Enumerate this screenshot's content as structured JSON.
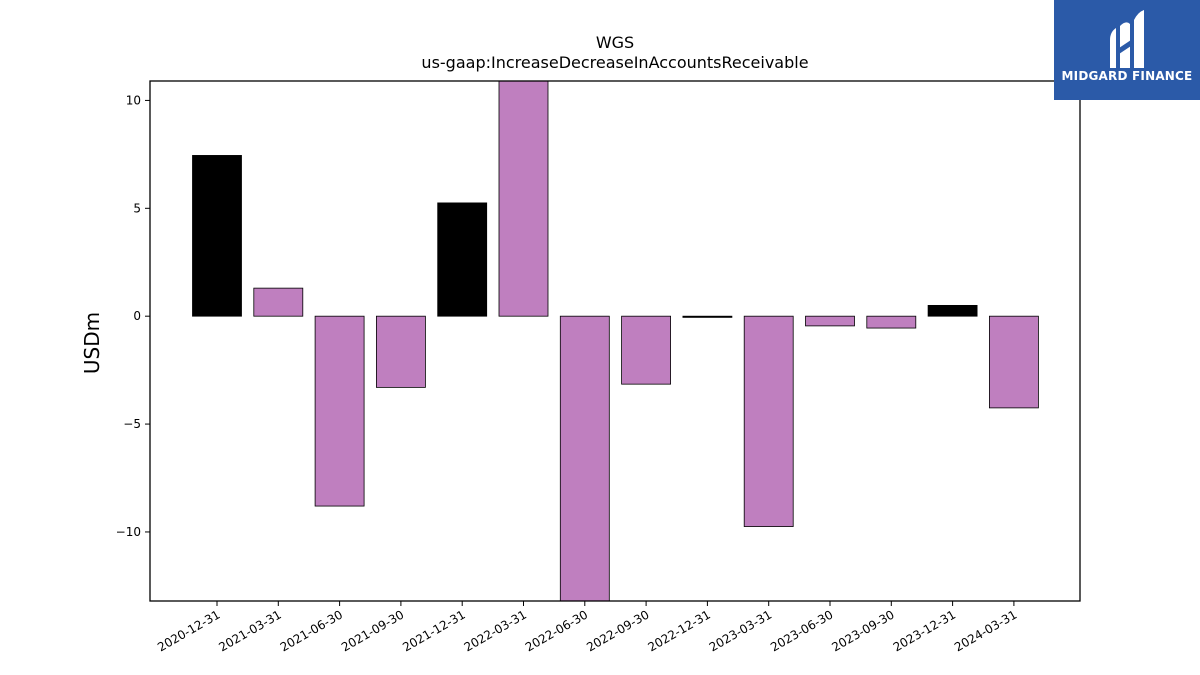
{
  "chart_data": {
    "type": "bar",
    "title": "WGS",
    "subtitle": "us-gaap:IncreaseDecreaseInAccountsReceivable",
    "ylabel": "USDm",
    "xlabel": "",
    "ylim": [
      -13.2,
      10.9
    ],
    "yticks": [
      10,
      5,
      0,
      -5,
      -10
    ],
    "ytick_labels": [
      "10",
      "5",
      "0",
      "−5",
      "−10"
    ],
    "categories": [
      "2020-12-31",
      "2021-03-31",
      "2021-06-30",
      "2021-09-30",
      "2021-12-31",
      "2022-03-31",
      "2022-06-30",
      "2022-09-30",
      "2022-12-31",
      "2023-03-31",
      "2023-06-30",
      "2023-09-30",
      "2023-12-31",
      "2024-03-31"
    ],
    "values": [
      7.45,
      1.3,
      -8.8,
      -3.3,
      5.25,
      10.9,
      -13.2,
      -3.15,
      -0.05,
      -9.75,
      -0.45,
      -0.55,
      0.5,
      -4.25
    ],
    "colors": [
      "#000000",
      "#bf7fbf",
      "#bf7fbf",
      "#bf7fbf",
      "#000000",
      "#bf7fbf",
      "#bf7fbf",
      "#bf7fbf",
      "#000000",
      "#bf7fbf",
      "#bf7fbf",
      "#bf7fbf",
      "#000000",
      "#bf7fbf"
    ],
    "grid": false,
    "legend": "none"
  },
  "logo": {
    "text": "MIDGARD FINANCE",
    "background": "#2b5aa8"
  }
}
